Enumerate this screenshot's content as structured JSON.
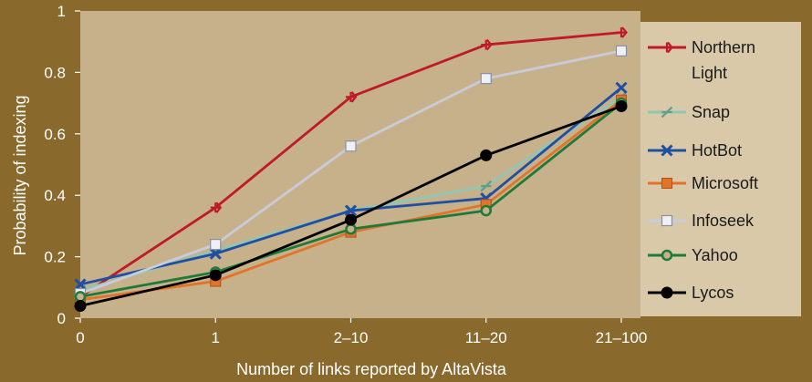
{
  "chart_data": {
    "type": "line",
    "categories": [
      "0",
      "1",
      "2–10",
      "11–20",
      "21–100"
    ],
    "xlabel": "Number of links reported by AltaVista",
    "ylabel": "Probability of indexing",
    "ylim": [
      0,
      1
    ],
    "yticks": [
      "0",
      "0.2",
      "0.4",
      "0.6",
      "0.8",
      "1"
    ],
    "grid": false,
    "legend_position": "right",
    "colors": {
      "background": "#8a6a2c",
      "plot_area": "#c7b18a",
      "legend_box": "#d9c9a8"
    },
    "series": [
      {
        "name": "Northern Light",
        "color": "#c0192a",
        "marker": "plus-arrow",
        "values": [
          0.07,
          0.36,
          0.72,
          0.89,
          0.93
        ]
      },
      {
        "name": "Snap",
        "color": "#8fc7b4",
        "marker": "slash-cross",
        "values": [
          0.09,
          0.22,
          0.35,
          0.43,
          0.72
        ]
      },
      {
        "name": "HotBot",
        "color": "#1f4fa3",
        "marker": "x",
        "values": [
          0.11,
          0.21,
          0.35,
          0.39,
          0.75
        ]
      },
      {
        "name": "Microsoft",
        "color": "#e2742a",
        "marker": "square",
        "values": [
          0.06,
          0.12,
          0.28,
          0.37,
          0.71
        ]
      },
      {
        "name": "Infoseek",
        "color": "#c8ccda",
        "marker": "open-square",
        "values": [
          0.08,
          0.24,
          0.56,
          0.78,
          0.87
        ]
      },
      {
        "name": "Yahoo",
        "color": "#1d7a3a",
        "marker": "ring",
        "values": [
          0.07,
          0.15,
          0.29,
          0.35,
          0.7
        ]
      },
      {
        "name": "Lycos",
        "color": "#000000",
        "marker": "dot",
        "values": [
          0.04,
          0.14,
          0.32,
          0.53,
          0.69
        ]
      }
    ]
  }
}
